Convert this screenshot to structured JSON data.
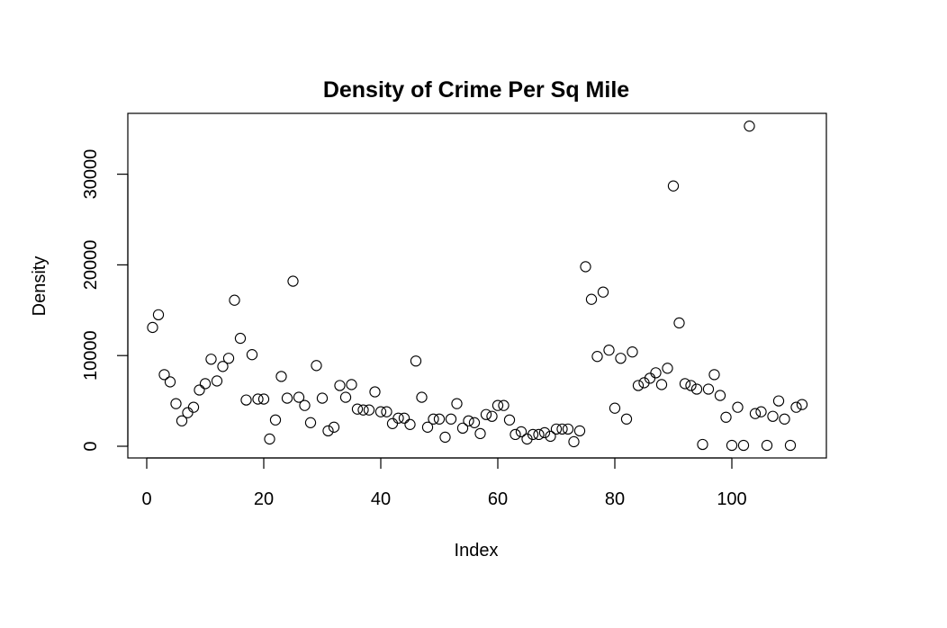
{
  "chart_data": {
    "type": "scatter",
    "title": "Density of Crime Per Sq Mile",
    "xlabel": "Index",
    "ylabel": "Density",
    "xlim": [
      0,
      112
    ],
    "ylim": [
      0,
      35500
    ],
    "xticks": [
      0,
      20,
      40,
      60,
      80,
      100
    ],
    "yticks": [
      0,
      10000,
      20000,
      30000
    ],
    "grid": false,
    "legend": "none",
    "marker": "open-circle",
    "x": [
      1,
      2,
      3,
      4,
      5,
      6,
      7,
      8,
      9,
      10,
      11,
      12,
      13,
      14,
      15,
      16,
      17,
      18,
      19,
      20,
      21,
      22,
      23,
      24,
      25,
      26,
      27,
      28,
      29,
      30,
      31,
      32,
      33,
      34,
      35,
      36,
      37,
      38,
      39,
      40,
      41,
      42,
      43,
      44,
      45,
      46,
      47,
      48,
      49,
      50,
      51,
      52,
      53,
      54,
      55,
      56,
      57,
      58,
      59,
      60,
      61,
      62,
      63,
      64,
      65,
      66,
      67,
      68,
      69,
      70,
      71,
      72,
      73,
      74,
      75,
      76,
      77,
      78,
      79,
      80,
      81,
      82,
      83,
      84,
      85,
      86,
      87,
      88,
      89,
      90,
      91,
      92,
      93,
      94,
      95,
      96,
      97,
      98,
      99,
      100,
      101,
      102,
      103,
      104,
      105,
      106,
      107,
      108,
      109,
      110,
      111,
      112
    ],
    "y": [
      13100,
      14500,
      7900,
      7100,
      4700,
      2800,
      3700,
      4300,
      6200,
      6900,
      9600,
      7200,
      8800,
      9700,
      16100,
      11900,
      5100,
      10100,
      5200,
      5200,
      800,
      2900,
      7700,
      5300,
      18200,
      5400,
      4500,
      2600,
      8900,
      5300,
      1700,
      2100,
      6700,
      5400,
      6800,
      4100,
      4000,
      4000,
      6000,
      3800,
      3800,
      2500,
      3100,
      3100,
      2400,
      9400,
      5400,
      2100,
      3000,
      3000,
      1000,
      3000,
      4700,
      2000,
      2800,
      2600,
      1400,
      3500,
      3300,
      4500,
      4500,
      2900,
      1300,
      1600,
      800,
      1300,
      1300,
      1500,
      1100,
      1900,
      1900,
      1900,
      500,
      1700,
      19800,
      16200,
      9900,
      17000,
      10600,
      4200,
      9700,
      3000,
      10400,
      6700,
      7000,
      7500,
      8100,
      6800,
      8600,
      28700,
      13600,
      6900,
      6700,
      6300,
      200,
      6300,
      7900,
      5600,
      3200,
      100,
      4300,
      100,
      35300,
      3600,
      3800,
      100,
      3300,
      5000,
      3000,
      100,
      4300,
      4600
    ]
  }
}
